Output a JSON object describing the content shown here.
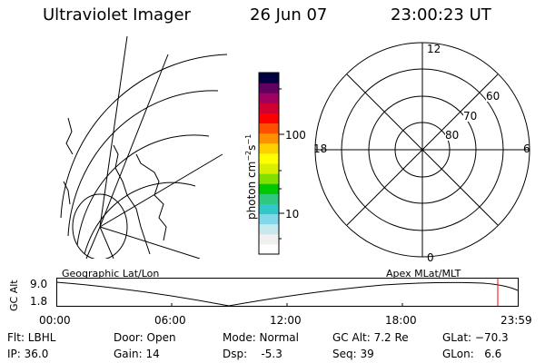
{
  "header": {
    "instrument": "Ultraviolet Imager",
    "date": "26 Jun 07",
    "time": "23:00:23 UT"
  },
  "colorbar": {
    "label_text": "photon cm",
    "label_exp1": "−2",
    "label_mid": "s",
    "label_exp2": "−1",
    "tick_100": "100",
    "tick_10": "10",
    "colors": [
      "#ffffff",
      "#f0f0f0",
      "#c8e8f0",
      "#80d8e8",
      "#30c8c8",
      "#30c880",
      "#00c800",
      "#80e000",
      "#d8f000",
      "#ffff00",
      "#ffd000",
      "#ff9000",
      "#ff5000",
      "#ff0000",
      "#d00030",
      "#a00060",
      "#600060",
      "#000040"
    ]
  },
  "polar_plot": {
    "mlt_labels": {
      "top": "12",
      "bottom": "0",
      "left": "18",
      "right": "6"
    },
    "lat_labels": [
      "60",
      "70",
      "80"
    ]
  },
  "map_panel": {
    "label": "Geographic Lat/Lon"
  },
  "timeline": {
    "ylabel": "GC Alt",
    "y_top": "9.0",
    "y_bottom": "1.8",
    "apex_label": "Apex MLat/MLT",
    "x_ticks": [
      "00:00",
      "06:00",
      "12:00",
      "18:00",
      "23:59"
    ],
    "marker_color": "#ff0000"
  },
  "status": {
    "flt": "Flt: LBHL",
    "ip": "IP: 36.0",
    "door": "Door: Open",
    "gain": "Gain: 14",
    "mode": "Mode: Normal",
    "dsp": "Dsp:    -5.3",
    "gc_alt": "GC Alt: 7.2 Re",
    "seq": "Seq: 39",
    "glat": "GLat: −70.3",
    "glon": "GLon:   6.6"
  }
}
